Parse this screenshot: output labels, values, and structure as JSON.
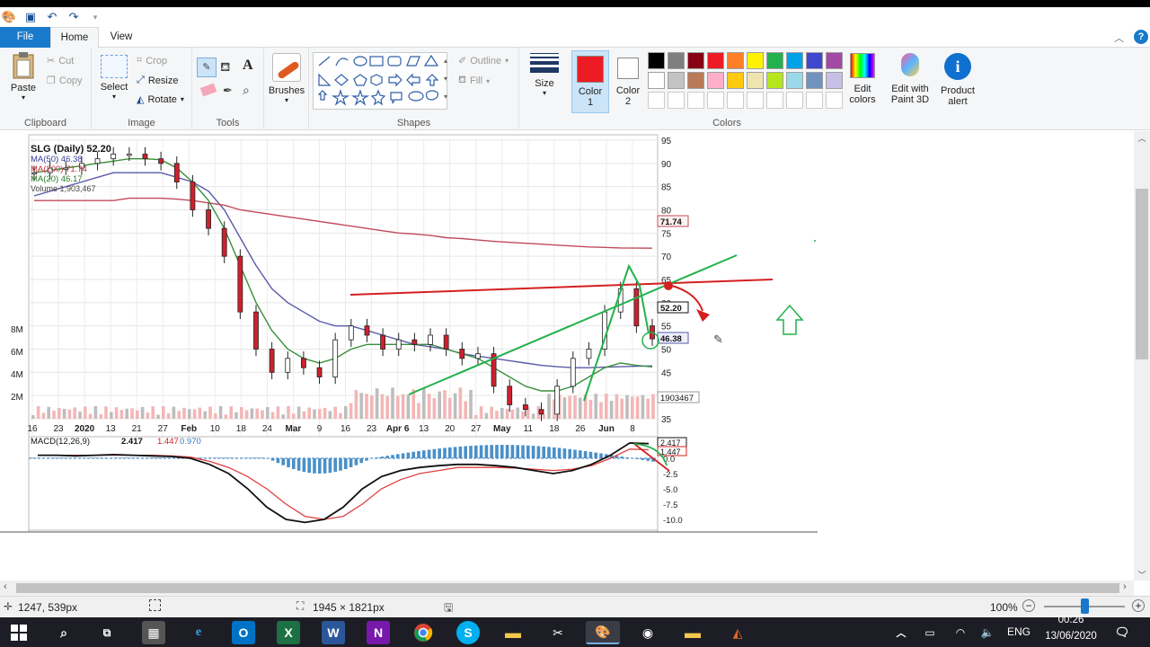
{
  "tabs": {
    "file": "File",
    "home": "Home",
    "view": "View"
  },
  "clipboard": {
    "paste": "Paste",
    "cut": "Cut",
    "copy": "Copy",
    "label": "Clipboard"
  },
  "image": {
    "select": "Select",
    "crop": "Crop",
    "resize": "Resize",
    "rotate": "Rotate",
    "label": "Image"
  },
  "tools": {
    "label": "Tools"
  },
  "brushes": {
    "label": "Brushes"
  },
  "shapes": {
    "outline": "Outline",
    "fill": "Fill",
    "label": "Shapes"
  },
  "size": {
    "label": "Size"
  },
  "color1": {
    "line1": "Color",
    "line2": "1",
    "value": "#ed1c24"
  },
  "color2": {
    "line1": "Color",
    "line2": "2",
    "value": "#ffffff"
  },
  "colors": {
    "label": "Colors",
    "row1": [
      "#000000",
      "#7f7f7f",
      "#880015",
      "#ed1c24",
      "#ff7f27",
      "#fff200",
      "#22b14c",
      "#00a2e8",
      "#3f48cc",
      "#a349a4"
    ],
    "row2": [
      "#ffffff",
      "#c3c3c3",
      "#b97a57",
      "#ffaec9",
      "#ffc90e",
      "#efe4b0",
      "#b5e61d",
      "#99d9ea",
      "#7092be",
      "#c8bfe7"
    ]
  },
  "edit_colors": {
    "line1": "Edit",
    "line2": "colors"
  },
  "paint3d": {
    "line1": "Edit with",
    "line2": "Paint 3D"
  },
  "product_alert": {
    "line1": "Product",
    "line2": "alert"
  },
  "status": {
    "cursor": "1247, 539px",
    "dimensions": "1945 × 1821px",
    "zoom": "100%",
    "zoom_level": 0.5
  },
  "taskbar": {
    "lang": "ENG",
    "time": "00:26",
    "date": "13/06/2020"
  },
  "chart": {
    "legend_title": "SLG (Daily) 52.20",
    "ma50": "MA(50) 46.38",
    "ma200": "MA(200) 71.74",
    "ma20": "MA(20) 46.17",
    "volume": "Volume 1,903,467",
    "macd": "MACD(12,26,9)",
    "macd_v1": "2.417",
    "macd_v2": "1.447",
    "macd_v3": "0.970",
    "tag_ma200": "71.74",
    "tag_price": "52.20",
    "tag_ma50": "46.38",
    "tag_vol": "1903467",
    "tag_macd1": "2.417",
    "tag_macd2": "1.447"
  },
  "chart_data": {
    "type": "line",
    "title": "SLG (Daily) 52.20",
    "x_ticks": [
      "16",
      "23",
      "2020",
      "13",
      "21",
      "27",
      "Feb",
      "10",
      "18",
      "24",
      "Mar",
      "9",
      "16",
      "23",
      "Apr 6",
      "13",
      "20",
      "27",
      "May",
      "11",
      "18",
      "26",
      "Jun",
      "8"
    ],
    "y_ticks": [
      "95",
      "90",
      "85",
      "80",
      "75",
      "70",
      "65",
      "60",
      "55",
      "50",
      "45",
      "40",
      "35"
    ],
    "volume_ticks": [
      "8M",
      "6M",
      "4M",
      "2M"
    ],
    "macd_ticks": [
      "0.0",
      "-2.5",
      "-5.0",
      "-7.5",
      "-10.0"
    ],
    "ylim": [
      35,
      95
    ],
    "series": [
      {
        "name": "SLG (Daily)",
        "color": "#111111",
        "values": [
          88,
          89,
          89,
          90,
          91,
          92,
          92,
          91,
          90,
          86,
          80,
          76,
          70,
          58,
          50,
          45,
          48,
          46,
          44,
          52,
          55,
          53,
          50,
          52,
          51,
          53,
          50,
          48,
          49,
          42,
          38,
          37,
          36,
          42,
          48,
          50,
          58,
          63,
          55,
          52.2
        ]
      },
      {
        "name": "MA(50)",
        "color": "#5a5aa8",
        "values": [
          83,
          84,
          85,
          86,
          87,
          88,
          88,
          88,
          88,
          87,
          86,
          84,
          80,
          74,
          68,
          63,
          60,
          58,
          56,
          55,
          55,
          54,
          53,
          52,
          51,
          50.5,
          50,
          49,
          48.5,
          48,
          47.5,
          47,
          46.5,
          46.2,
          46,
          46,
          46.1,
          46.2,
          46.3,
          46.38
        ]
      },
      {
        "name": "MA(200)",
        "color": "#c04a5a",
        "values": [
          82,
          82,
          82,
          82,
          82,
          82,
          82.5,
          82.5,
          82.5,
          82.3,
          82,
          81.5,
          81,
          80,
          79.5,
          79,
          78.5,
          78,
          77.5,
          77,
          76.5,
          76,
          75.5,
          75,
          74.8,
          74.5,
          74,
          73.8,
          73.5,
          73.2,
          73,
          72.8,
          72.6,
          72.4,
          72.2,
          72,
          71.9,
          71.8,
          71.76,
          71.74
        ]
      },
      {
        "name": "MA(20)",
        "color": "#3a8f3a",
        "values": [
          88,
          88.5,
          89,
          89.5,
          90,
          90.5,
          91,
          91,
          90.8,
          89,
          86,
          82,
          76,
          68,
          60,
          54,
          50,
          48,
          47,
          48,
          50,
          51,
          51,
          51,
          51,
          51,
          50,
          49,
          48,
          46,
          44,
          42,
          41,
          41,
          42,
          44,
          46,
          47,
          46.5,
          46.17
        ]
      }
    ]
  }
}
